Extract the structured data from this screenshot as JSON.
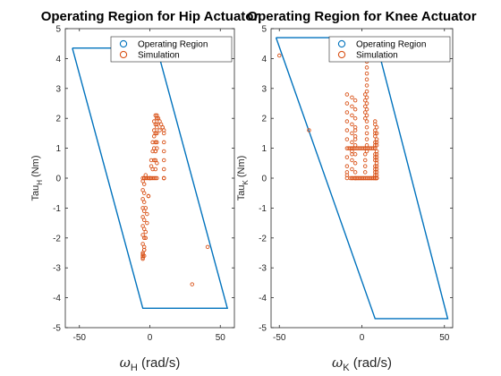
{
  "colors": {
    "region": "#0072BD",
    "simulation": "#D95319",
    "axis": "#262626"
  },
  "chart_data": [
    {
      "type": "scatter",
      "title": "Operating Region for Hip Actuator",
      "ylabel_main": "Tau",
      "ylabel_sub": "H",
      "ylabel_unit": " (Nm)",
      "xlabel_main": "ω",
      "xlabel_sub": "H",
      "xlabel_unit": " (rad/s)",
      "xlim": [
        -60,
        60
      ],
      "ylim": [
        -5,
        5
      ],
      "xticks": [
        -50,
        0,
        50
      ],
      "yticks": [
        -5,
        -4,
        -3,
        -2,
        -1,
        0,
        1,
        2,
        3,
        4,
        5
      ],
      "legend": {
        "placement": "top-right",
        "entries": [
          "Operating Region",
          "Simulation"
        ]
      },
      "series": [
        {
          "name": "Operating Region",
          "kind": "line",
          "x": [
            -55,
            5,
            55,
            -5,
            -55
          ],
          "y": [
            4.35,
            4.35,
            -4.35,
            -4.35,
            4.35
          ]
        },
        {
          "name": "Simulation",
          "kind": "scatter",
          "x": [
            -5,
            -5,
            -5,
            -5,
            -5,
            -5,
            -5,
            -5,
            -5,
            -5,
            -5,
            -4,
            -4,
            -4,
            -4,
            -4,
            -4,
            -4,
            -4,
            -4,
            -4,
            -3,
            -3,
            -2,
            -1,
            0,
            1,
            2,
            3,
            4,
            5,
            -4,
            -3,
            -2,
            -1,
            0,
            1,
            2,
            3,
            3,
            4,
            5,
            6,
            7,
            8,
            9,
            10,
            10,
            10,
            10,
            10,
            10,
            10,
            10,
            10,
            2,
            3,
            4,
            4,
            4,
            4,
            4,
            4,
            4,
            4,
            5,
            5,
            5,
            5,
            5,
            5,
            5,
            5,
            -4,
            -3,
            -2,
            -1,
            0,
            1,
            2,
            3,
            4,
            41,
            30,
            -3,
            3,
            5,
            7,
            9,
            -5,
            -5,
            -5,
            -4
          ],
          "y": [
            -2.7,
            -2.5,
            -2.2,
            -1.9,
            -1.6,
            -1.3,
            -1.0,
            -0.7,
            -0.4,
            -0.1,
            0.0,
            -2.6,
            -2.3,
            -2.0,
            -1.7,
            -1.4,
            -1.1,
            -0.8,
            -0.5,
            -0.2,
            0.0,
            -2.0,
            -1.0,
            -1.5,
            -0.6,
            0.0,
            0.4,
            0.9,
            1.4,
            1.8,
            2.0,
            -2.4,
            -1.8,
            -1.2,
            -0.6,
            0.0,
            0.6,
            1.2,
            1.6,
            1.9,
            2.1,
            2.1,
            2.0,
            1.9,
            1.8,
            1.7,
            1.6,
            1.5,
            1.2,
            0.9,
            0.6,
            0.3,
            0.0,
            0.0,
            0.0,
            0.3,
            0.6,
            0.9,
            1.2,
            1.5,
            0.3,
            0.6,
            0.9,
            1.2,
            1.5,
            1.8,
            2.0,
            0.0,
            0.5,
            1.0,
            1.5,
            1.7,
            2.0,
            0.0,
            0.0,
            0.0,
            0.0,
            0.0,
            0.0,
            0.0,
            0.0,
            0.0,
            -2.3,
            -3.55,
            0.1,
            1.0,
            1.2,
            1.6,
            1.7,
            -2.6,
            -2.65,
            -2.55,
            -2.4
          ]
        }
      ]
    },
    {
      "type": "scatter",
      "title": "Operating Region for Knee Actuator",
      "ylabel_main": "Tau",
      "ylabel_sub": "K",
      "ylabel_unit": " (Nm)",
      "xlabel_main": "ω",
      "xlabel_sub": "K",
      "xlabel_unit": " (rad/s)",
      "xlim": [
        -55,
        55
      ],
      "ylim": [
        -5,
        5
      ],
      "xticks": [
        -50,
        0,
        50
      ],
      "yticks": [
        -5,
        -4,
        -3,
        -2,
        -1,
        0,
        1,
        2,
        3,
        4,
        5
      ],
      "legend": {
        "placement": "top-right",
        "entries": [
          "Operating Region",
          "Simulation"
        ]
      },
      "series": [
        {
          "name": "Operating Region",
          "kind": "line",
          "x": [
            -52,
            8,
            52,
            8,
            -52
          ],
          "y": [
            4.7,
            4.7,
            -4.7,
            -4.7,
            4.7
          ]
        },
        {
          "name": "Simulation",
          "kind": "scatter",
          "x": [
            -50,
            -32,
            -9,
            -9,
            -9,
            -9,
            -9,
            -9,
            -9,
            -9,
            -9,
            -9,
            -9,
            -9,
            -6,
            -6,
            -6,
            -6,
            -6,
            -6,
            -6,
            -6,
            -6,
            -6,
            -6,
            -6,
            -4,
            -4,
            -4,
            -4,
            -4,
            -4,
            -4,
            -4,
            -4,
            -4,
            -4,
            -4,
            -7,
            -6,
            -5,
            -4,
            -3,
            -2,
            -1,
            0,
            1,
            2,
            3,
            4,
            5,
            6,
            7,
            8,
            9,
            -8,
            -7,
            -6,
            -5,
            -4,
            -3,
            -2,
            -1,
            0,
            1,
            2,
            3,
            4,
            5,
            6,
            7,
            8,
            2,
            2,
            2,
            2,
            2,
            2,
            2,
            2,
            2,
            2,
            3,
            3,
            3,
            3,
            3,
            3,
            3,
            3,
            3,
            3,
            3,
            3,
            3,
            3,
            3,
            3,
            3,
            3,
            3,
            3,
            8,
            8,
            8,
            8,
            8,
            8,
            8,
            8,
            8,
            8,
            8,
            8,
            8,
            8,
            8,
            8,
            9,
            9,
            9,
            9,
            9,
            9,
            9,
            9,
            9,
            9,
            9,
            9,
            9,
            9,
            9,
            9,
            -4,
            -3,
            -2,
            -1,
            0,
            1,
            2,
            3,
            4,
            5,
            6,
            7,
            8
          ],
          "y": [
            4.1,
            1.6,
            2.8,
            2.5,
            2.2,
            1.9,
            1.6,
            1.3,
            1.0,
            0.7,
            0.4,
            0.1,
            0.0,
            0.2,
            2.7,
            2.4,
            2.1,
            1.8,
            1.5,
            1.2,
            0.9,
            0.6,
            0.3,
            0.0,
            1.0,
            0.8,
            2.6,
            2.3,
            2.0,
            1.7,
            1.4,
            1.1,
            0.8,
            0.5,
            0.2,
            0.0,
            1.3,
            1.6,
            0.0,
            0.0,
            0.0,
            0.0,
            0.0,
            0.0,
            0.0,
            0.0,
            0.0,
            0.0,
            0.0,
            0.0,
            0.0,
            0.0,
            0.0,
            0.0,
            0.0,
            1.0,
            1.0,
            1.0,
            1.0,
            1.0,
            1.0,
            1.0,
            1.0,
            1.0,
            1.0,
            1.0,
            1.0,
            1.0,
            1.0,
            1.0,
            1.0,
            1.0,
            2.0,
            2.2,
            2.4,
            2.6,
            2.8,
            0.2,
            0.4,
            0.6,
            0.8,
            1.0,
            4.6,
            4.5,
            4.3,
            4.1,
            3.9,
            3.7,
            3.5,
            3.3,
            3.1,
            2.9,
            2.7,
            2.5,
            2.3,
            2.1,
            1.9,
            1.7,
            1.5,
            1.3,
            1.1,
            0.9,
            1.6,
            1.4,
            1.2,
            1.0,
            0.8,
            0.6,
            0.4,
            0.2,
            0.0,
            1.8,
            1.9,
            1.5,
            1.1,
            0.7,
            0.3,
            0.1,
            1.5,
            1.3,
            1.1,
            0.9,
            0.7,
            0.5,
            0.3,
            0.1,
            0.0,
            1.7,
            1.2,
            0.8,
            0.4,
            0.2,
            0.0,
            0.6,
            0.0,
            0.0,
            0.0,
            0.0,
            0.0,
            0.0,
            0.0,
            0.0,
            0.0,
            0.0,
            0.0,
            0.0,
            0.0
          ]
        }
      ]
    }
  ]
}
